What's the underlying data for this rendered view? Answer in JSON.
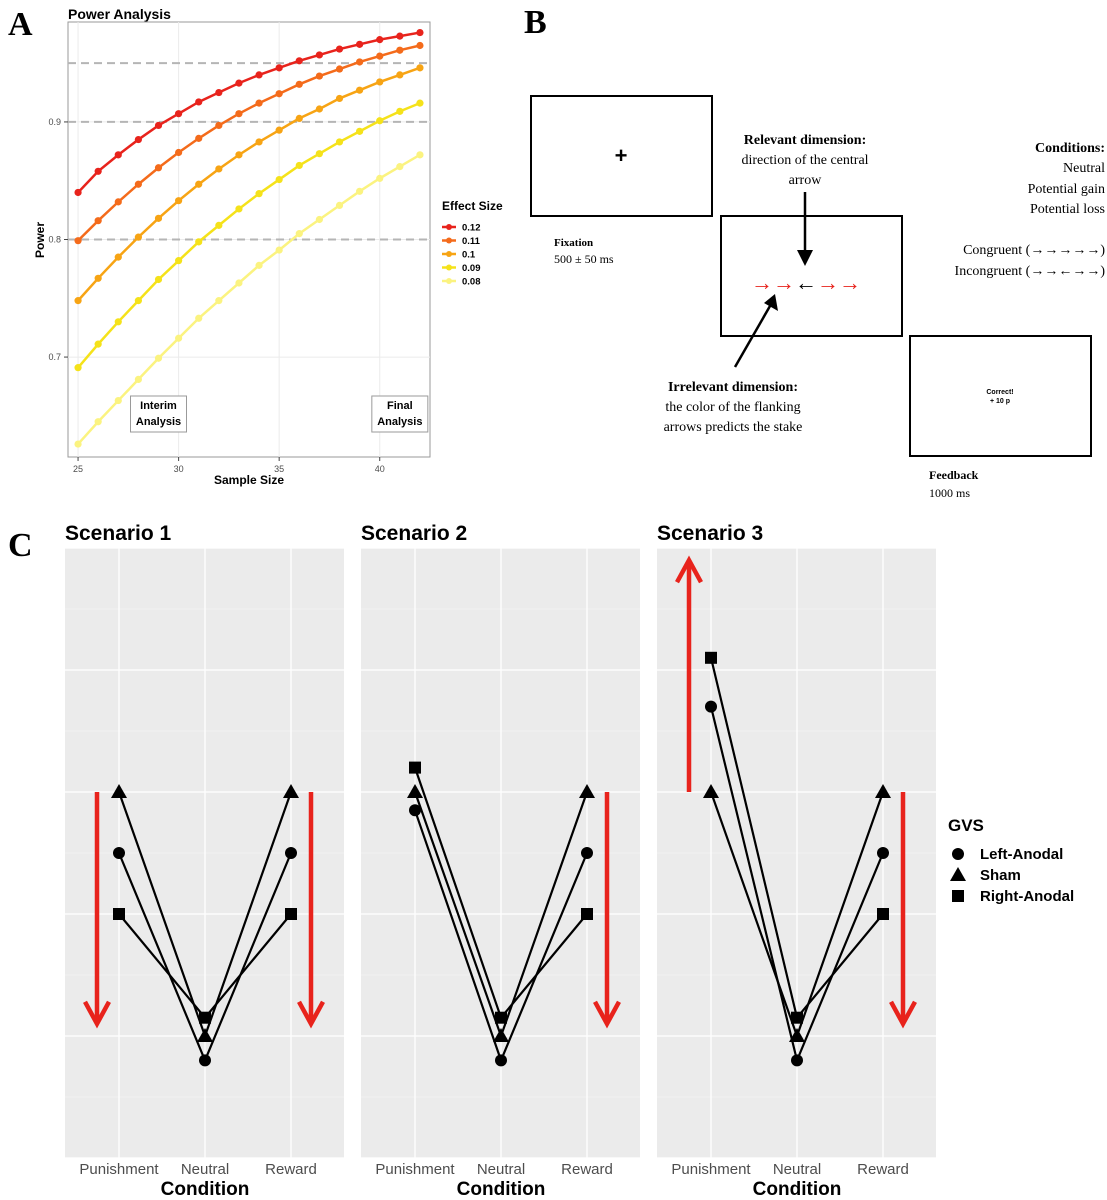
{
  "panels": {
    "A": {
      "letter": "A"
    },
    "B": {
      "letter": "B"
    },
    "C": {
      "letter": "C"
    }
  },
  "chart_data": [
    {
      "id": "power",
      "type": "line",
      "title": "Power Analysis",
      "xlabel": "Sample Size",
      "ylabel": "Power",
      "xlim": [
        24.5,
        42.5
      ],
      "ylim": [
        0.615,
        0.985
      ],
      "xticks": [
        "25",
        "30",
        "35",
        "40"
      ],
      "yticks": [
        "0.7",
        "0.8",
        "0.9"
      ],
      "hlines": [
        0.8,
        0.9,
        0.95
      ],
      "grid": true,
      "legend_title": "Effect Size",
      "legend_position": "right",
      "x": [
        25,
        26,
        27,
        28,
        29,
        30,
        31,
        32,
        33,
        34,
        35,
        36,
        37,
        38,
        39,
        40,
        41,
        42
      ],
      "series": [
        {
          "name": "0.12",
          "color": "#e8231c",
          "values": [
            0.84,
            0.858,
            0.872,
            0.885,
            0.897,
            0.907,
            0.917,
            0.925,
            0.933,
            0.94,
            0.946,
            0.952,
            0.957,
            0.962,
            0.966,
            0.97,
            0.973,
            0.976
          ]
        },
        {
          "name": "0.11",
          "color": "#f46b1b",
          "values": [
            0.799,
            0.816,
            0.832,
            0.847,
            0.861,
            0.874,
            0.886,
            0.897,
            0.907,
            0.916,
            0.924,
            0.932,
            0.939,
            0.945,
            0.951,
            0.956,
            0.961,
            0.965
          ]
        },
        {
          "name": "0.1",
          "color": "#f7a414",
          "values": [
            0.748,
            0.767,
            0.785,
            0.802,
            0.818,
            0.833,
            0.847,
            0.86,
            0.872,
            0.883,
            0.893,
            0.903,
            0.911,
            0.92,
            0.927,
            0.934,
            0.94,
            0.946
          ]
        },
        {
          "name": "0.09",
          "color": "#f5e21a",
          "values": [
            0.691,
            0.711,
            0.73,
            0.748,
            0.766,
            0.782,
            0.798,
            0.812,
            0.826,
            0.839,
            0.851,
            0.863,
            0.873,
            0.883,
            0.892,
            0.901,
            0.909,
            0.916
          ]
        },
        {
          "name": "0.08",
          "color": "#fbf380",
          "values": [
            0.626,
            0.645,
            0.663,
            0.681,
            0.699,
            0.716,
            0.733,
            0.748,
            0.763,
            0.778,
            0.791,
            0.805,
            0.817,
            0.829,
            0.841,
            0.852,
            0.862,
            0.872
          ]
        }
      ],
      "annotations": [
        {
          "lines": [
            "Interim",
            "Analysis"
          ],
          "x": 29
        },
        {
          "lines": [
            "Final",
            "Analysis"
          ],
          "x": 41
        }
      ]
    },
    {
      "id": "scenarios",
      "type": "line",
      "categories": [
        "Punishment",
        "Neutral",
        "Reward"
      ],
      "xlabel": "Condition",
      "ylabel": "",
      "ylim": [
        0,
        10
      ],
      "grid": true,
      "legend_title": "GVS",
      "legend_position": "right",
      "legend": [
        {
          "name": "Left-Anodal",
          "shape": "circle"
        },
        {
          "name": "Sham",
          "shape": "triangle"
        },
        {
          "name": "Right-Anodal",
          "shape": "square"
        }
      ],
      "panels": [
        {
          "title": "Scenario 1",
          "series": [
            {
              "name": "Left-Anodal",
              "values": [
                5.0,
                1.6,
                5.0
              ]
            },
            {
              "name": "Sham",
              "values": [
                6.0,
                2.0,
                6.0
              ]
            },
            {
              "name": "Right-Anodal",
              "values": [
                4.0,
                2.3,
                4.0
              ]
            }
          ],
          "arrows": [
            {
              "direction": "down",
              "from": 6.0,
              "to": 2.2,
              "side": "left"
            },
            {
              "direction": "down",
              "from": 6.0,
              "to": 2.2,
              "side": "right"
            }
          ]
        },
        {
          "title": "Scenario 2",
          "series": [
            {
              "name": "Left-Anodal",
              "values": [
                5.7,
                1.6,
                5.0
              ]
            },
            {
              "name": "Sham",
              "values": [
                6.0,
                2.0,
                6.0
              ]
            },
            {
              "name": "Right-Anodal",
              "values": [
                6.4,
                2.3,
                4.0
              ]
            }
          ],
          "arrows": [
            {
              "direction": "down",
              "from": 6.0,
              "to": 2.2,
              "side": "right"
            }
          ]
        },
        {
          "title": "Scenario 3",
          "series": [
            {
              "name": "Left-Anodal",
              "values": [
                7.4,
                1.6,
                5.0
              ]
            },
            {
              "name": "Sham",
              "values": [
                6.0,
                2.0,
                6.0
              ]
            },
            {
              "name": "Right-Anodal",
              "values": [
                8.2,
                2.3,
                4.0
              ]
            }
          ],
          "arrows": [
            {
              "direction": "up",
              "from": 6.0,
              "to": 9.8,
              "side": "left"
            },
            {
              "direction": "down",
              "from": 6.0,
              "to": 2.2,
              "side": "right"
            }
          ]
        }
      ]
    }
  ],
  "task": {
    "fixation": {
      "symbol": "+",
      "title": "Fixation",
      "timing": "500 ± 50 ms"
    },
    "stimulus": {
      "flankers_left": "→→",
      "center": "←",
      "flankers_right": "→→",
      "flanker_color": "#e8231c"
    },
    "relevant": {
      "title": "Relevant dimension:",
      "line1": "direction of the central",
      "line2": "arrow"
    },
    "irrelevant": {
      "title": "Irrelevant dimension:",
      "line1": "the color of the flanking",
      "line2": "arrows predicts the stake"
    },
    "conditions": {
      "title": "Conditions:",
      "items": [
        "Neutral",
        "Potential gain",
        "Potential loss"
      ],
      "congruent": "Congruent (→→→→→)",
      "incongruent": "Incongruent (→→←→→)"
    },
    "feedback": {
      "line1": "Correct!",
      "line2": "+ 10 p",
      "title": "Feedback",
      "timing": "1000 ms"
    }
  },
  "colors": {
    "arrow_red": "#e8231c",
    "panel_bg": "#ebebeb",
    "grid": "#ffffff"
  }
}
